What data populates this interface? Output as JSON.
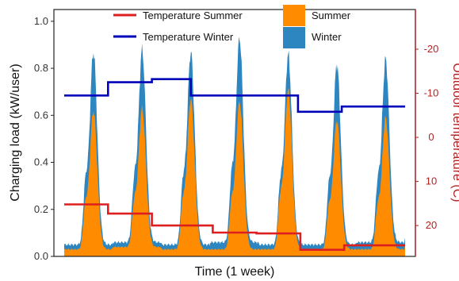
{
  "chart_data": {
    "type": "area",
    "xlabel": "Time (1 week)",
    "ylabel": "Charging load (kW/user)",
    "ylabel_right": "Outdoor temperature (C)",
    "ylim": [
      0,
      1.05
    ],
    "yticks": [
      "0.0",
      "0.2",
      "0.4",
      "0.6",
      "0.8",
      "1.0"
    ],
    "ytick_values": [
      0,
      0.2,
      0.4,
      0.6,
      0.8,
      1.0
    ],
    "y2lim": [
      27,
      -29
    ],
    "y2ticks": [
      "20",
      "10",
      "0",
      "-10",
      "-20"
    ],
    "y2tick_values": [
      20,
      10,
      0,
      -10,
      -20
    ],
    "xlim": [
      0,
      7
    ],
    "grid": false,
    "legend_placement": "top-center",
    "legend": [
      {
        "label": "Temperature Summer",
        "kind": "line",
        "color": "#dd1f1f"
      },
      {
        "label": "Summer",
        "kind": "patch",
        "color": "#ff8c00"
      },
      {
        "label": "Temperature Winter",
        "kind": "line",
        "color": "#0000bb"
      },
      {
        "label": "Winter",
        "kind": "patch",
        "color": "#2e86c1"
      }
    ],
    "series": [
      {
        "name": "Winter",
        "axis": "left",
        "color": "#2e86c1",
        "peaks": [
          0.87,
          0.88,
          0.87,
          0.93,
          0.86,
          0.82,
          0.84
        ],
        "bases": [
          0.05,
          0.06,
          0.05,
          0.06,
          0.05,
          0.05,
          0.06
        ]
      },
      {
        "name": "Summer",
        "axis": "left",
        "color": "#ff8c00",
        "peaks": [
          0.62,
          0.63,
          0.67,
          0.66,
          0.71,
          0.58,
          0.59
        ],
        "bases": [
          0.03,
          0.04,
          0.03,
          0.03,
          0.03,
          0.03,
          0.03
        ]
      },
      {
        "name": "Temperature Winter",
        "axis": "right",
        "color": "#0000bb",
        "x": [
          0,
          0.9,
          0.9,
          1.8,
          1.8,
          2.6,
          2.6,
          4.8,
          4.8,
          5.7,
          5.7,
          7
        ],
        "values": [
          -9.5,
          -9.5,
          -12.5,
          -12.5,
          -13.2,
          -13.2,
          -9.5,
          -9.5,
          -5.8,
          -5.8,
          -7,
          -7
        ]
      },
      {
        "name": "Temperature Summer",
        "axis": "right",
        "color": "#dd1f1f",
        "x": [
          0,
          0.9,
          0.9,
          1.8,
          1.8,
          3.05,
          3.05,
          3.95,
          3.95,
          4.85,
          4.85,
          5.75,
          5.75,
          7
        ],
        "values": [
          15.2,
          15.2,
          17.3,
          17.3,
          20,
          20,
          21.6,
          21.6,
          21.8,
          21.8,
          25.5,
          25.5,
          24.5,
          24.5
        ]
      }
    ]
  }
}
